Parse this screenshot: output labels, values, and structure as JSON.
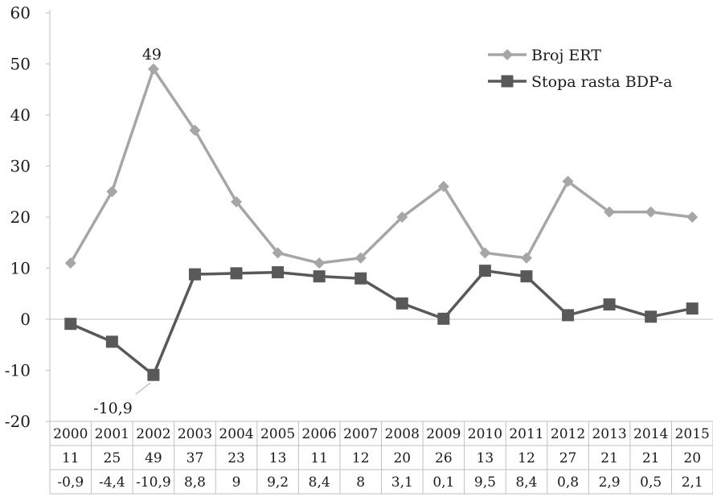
{
  "chart_data": {
    "type": "line",
    "categories": [
      "2000",
      "2001",
      "2002",
      "2003",
      "2004",
      "2005",
      "2006",
      "2007",
      "2008",
      "2009",
      "2010",
      "2011",
      "2012",
      "2013",
      "2014",
      "2015"
    ],
    "series": [
      {
        "name": "Broj ERT",
        "marker": "diamond",
        "color": "#a6a6a6",
        "values": [
          11,
          25,
          49,
          37,
          23,
          13,
          11,
          12,
          20,
          26,
          13,
          12,
          27,
          21,
          21,
          20
        ],
        "table_labels": [
          "11",
          "25",
          "49",
          "37",
          "23",
          "13",
          "11",
          "12",
          "20",
          "26",
          "13",
          "12",
          "27",
          "21",
          "21",
          "20"
        ]
      },
      {
        "name": "Stopa rasta BDP-a",
        "marker": "square",
        "color": "#595959",
        "values": [
          -0.9,
          -4.4,
          -10.9,
          8.8,
          9,
          9.2,
          8.4,
          8,
          3.1,
          0.1,
          9.5,
          8.4,
          0.8,
          2.9,
          0.5,
          2.1
        ],
        "table_labels": [
          "-0,9",
          "-4,4",
          "-10,9",
          "8,8",
          "9",
          "9,2",
          "8,4",
          "8",
          "3,1",
          "0,1",
          "9,5",
          "8,4",
          "0,8",
          "2,9",
          "0,5",
          "2,1"
        ]
      }
    ],
    "ylim": [
      -20,
      60
    ],
    "yticks": [
      -20,
      -10,
      0,
      10,
      20,
      30,
      40,
      50,
      60
    ],
    "ytick_labels": [
      "-20",
      "-10",
      "0",
      "10",
      "20",
      "30",
      "40",
      "50",
      "60"
    ],
    "annotations": [
      {
        "series": 0,
        "index": 2,
        "text": "49"
      },
      {
        "series": 1,
        "index": 2,
        "text": "-10,9"
      }
    ],
    "data_table": true,
    "legend_position": "top-right",
    "grid": false
  }
}
